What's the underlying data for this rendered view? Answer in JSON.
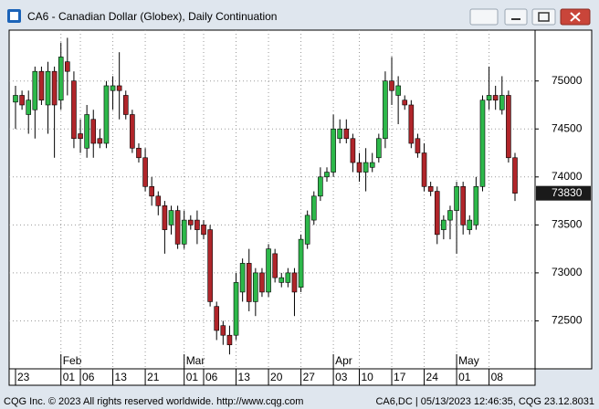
{
  "chart_data": {
    "type": "candlestick",
    "title": "CA6 - Canadian Dollar (Globex), Daily Continuation",
    "categories": [
      "23",
      null,
      null,
      null,
      null,
      null,
      null,
      "01",
      null,
      null,
      "06",
      null,
      null,
      null,
      null,
      "13",
      null,
      null,
      null,
      null,
      "21",
      null,
      null,
      null,
      null,
      null,
      "01",
      null,
      null,
      "06",
      null,
      null,
      null,
      null,
      "13",
      null,
      null,
      null,
      null,
      "20",
      null,
      null,
      null,
      null,
      "27",
      null,
      null,
      null,
      null,
      "03",
      null,
      null,
      null,
      "10",
      null,
      null,
      null,
      null,
      "17",
      null,
      null,
      null,
      null,
      "24",
      null,
      null,
      null,
      null,
      "01",
      null,
      null,
      null,
      null,
      "08",
      null,
      null,
      null,
      null
    ],
    "month_labels": [
      null,
      null,
      null,
      null,
      null,
      null,
      null,
      "Feb",
      null,
      null,
      null,
      null,
      null,
      null,
      null,
      null,
      null,
      null,
      null,
      null,
      null,
      null,
      null,
      null,
      null,
      null,
      "Mar",
      null,
      null,
      null,
      null,
      null,
      null,
      null,
      null,
      null,
      null,
      null,
      null,
      null,
      null,
      null,
      null,
      null,
      null,
      null,
      null,
      null,
      null,
      "Apr",
      null,
      null,
      null,
      null,
      null,
      null,
      null,
      null,
      null,
      null,
      null,
      null,
      null,
      null,
      null,
      null,
      null,
      null,
      "May",
      null,
      null,
      null,
      null,
      null,
      null,
      null,
      null,
      null
    ],
    "open": [
      74780,
      74850,
      74650,
      74700,
      75100,
      74750,
      75100,
      74800,
      75200,
      75000,
      74450,
      74300,
      74600,
      74400,
      74350,
      74900,
      74950,
      74850,
      74650,
      74300,
      74200,
      73900,
      73800,
      73700,
      73500,
      73650,
      73300,
      73550,
      73550,
      73500,
      73450,
      72650,
      72450,
      72350,
      72350,
      72800,
      73100,
      72700,
      73000,
      72800,
      73200,
      72900,
      72900,
      73000,
      72850,
      73300,
      73550,
      73800,
      74000,
      74050,
      74400,
      74500,
      74400,
      74150,
      74050,
      74100,
      74200,
      74400,
      75000,
      74850,
      74800,
      74750,
      74400,
      74250,
      73900,
      73850,
      73450,
      73550,
      73650,
      73900,
      73450,
      73500,
      73900,
      74800,
      74850,
      74700,
      74850,
      74200
    ],
    "high": [
      74950,
      74900,
      74900,
      75150,
      75150,
      75200,
      75150,
      75400,
      75450,
      75100,
      74600,
      74750,
      74700,
      74500,
      75000,
      75050,
      75300,
      74900,
      74700,
      74350,
      74300,
      74000,
      73850,
      73750,
      73700,
      73700,
      73650,
      73600,
      73650,
      73550,
      73500,
      72700,
      72500,
      72450,
      73000,
      73150,
      73250,
      73050,
      73050,
      73300,
      73250,
      73000,
      73050,
      73050,
      73400,
      73650,
      73850,
      74100,
      74100,
      74650,
      74600,
      74600,
      74450,
      74250,
      74300,
      74250,
      74450,
      75100,
      75250,
      75050,
      74850,
      74800,
      74450,
      74350,
      73950,
      73900,
      73600,
      73700,
      73950,
      73950,
      73600,
      74000,
      74850,
      75150,
      74950,
      75050,
      74900,
      74250
    ],
    "low": [
      74500,
      74700,
      74450,
      74400,
      74750,
      74450,
      74200,
      74700,
      74850,
      74300,
      74250,
      74200,
      74200,
      74300,
      74300,
      74700,
      74600,
      74600,
      74250,
      74150,
      73850,
      73700,
      73600,
      73200,
      73400,
      73250,
      73250,
      73450,
      73300,
      73350,
      72650,
      72300,
      72250,
      72150,
      72300,
      72700,
      72600,
      72550,
      72750,
      72750,
      72900,
      72850,
      72850,
      72550,
      72800,
      73250,
      73500,
      73750,
      73950,
      74000,
      74350,
      74350,
      74050,
      73950,
      73850,
      74050,
      74150,
      74300,
      74750,
      74550,
      74700,
      74300,
      74200,
      73850,
      73800,
      73300,
      73350,
      73350,
      73200,
      73400,
      73400,
      73450,
      73850,
      74700,
      74700,
      74650,
      74150,
      73750
    ],
    "close": [
      74850,
      74750,
      74800,
      75100,
      74800,
      75100,
      74750,
      75250,
      75100,
      74400,
      74400,
      74650,
      74350,
      74350,
      74950,
      74950,
      74900,
      74650,
      74300,
      74200,
      73900,
      73800,
      73700,
      73450,
      73650,
      73300,
      73550,
      73500,
      73450,
      73400,
      72700,
      72400,
      72350,
      72250,
      72900,
      73100,
      72700,
      73000,
      72800,
      73250,
      72950,
      72950,
      73000,
      72800,
      73350,
      73600,
      73800,
      74000,
      74050,
      74500,
      74500,
      74400,
      74150,
      74050,
      74150,
      74150,
      74400,
      75000,
      74900,
      74950,
      74750,
      74350,
      74250,
      73900,
      73850,
      73400,
      73550,
      73650,
      73900,
      73500,
      73550,
      73900,
      74800,
      74850,
      74800,
      74850,
      74200,
      73830
    ],
    "up_color": "#2db84a",
    "down_color": "#b0252a",
    "ylim": [
      72000,
      75530
    ],
    "yticks": [
      72500,
      73000,
      73500,
      74000,
      74500,
      75000
    ],
    "grid": true
  },
  "footer": {
    "left": "CQG Inc. © 2023 All rights reserved worldwide. http://www.cqg.com",
    "right": "CA6,DC | 05/13/2023 12:46:35, CQG 23.12.8031"
  }
}
